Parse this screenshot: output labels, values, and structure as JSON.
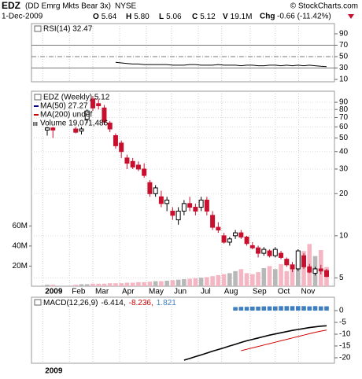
{
  "header": {
    "symbol": "EDZ",
    "name": "(DD Emrg Mkts Bear 3x)",
    "exchange": "NYSE",
    "copyright": "© StockCharts.com",
    "date": "1-Dec-2009",
    "quote": [
      {
        "label": "O",
        "value": "5.64"
      },
      {
        "label": "H",
        "value": "5.80"
      },
      {
        "label": "L",
        "value": "5.06"
      },
      {
        "label": "C",
        "value": "5.12"
      },
      {
        "label": "V",
        "value": "19.1M"
      }
    ],
    "change_label": "Chg",
    "change": "-0.66 (-11.42%)"
  },
  "chart_data": [
    {
      "type": "line",
      "title": "RSI(14) 32.47",
      "color": "#000000",
      "x": [
        12,
        13,
        14,
        15,
        16,
        17,
        18,
        19,
        20,
        21,
        22,
        23,
        24,
        25,
        26,
        27,
        28,
        29,
        30,
        31,
        32,
        33,
        34,
        35,
        36,
        37,
        38,
        39,
        40,
        41,
        42,
        43,
        44,
        45,
        46,
        47,
        48,
        49
      ],
      "values": [
        40,
        39,
        38,
        37,
        37,
        36,
        36,
        36,
        36,
        36,
        35,
        35,
        35,
        36,
        36,
        35,
        35,
        35,
        36,
        35,
        35,
        35,
        34,
        35,
        35,
        34,
        34,
        35,
        35,
        34,
        35,
        34,
        35,
        34,
        35,
        34,
        33,
        32.47
      ],
      "xlim": [
        -2.76,
        50.38
      ],
      "ylim": [
        5.86,
        107.9
      ],
      "yticks": [
        90,
        70,
        50,
        30,
        10
      ],
      "lines": [
        70,
        50,
        30
      ]
    },
    {
      "type": "candlestick",
      "title": "EDZ (Weekly) 5.12",
      "log_scale": true,
      "grid": true,
      "x": [
        0,
        1,
        5,
        6,
        7,
        8,
        9,
        10,
        11,
        12,
        13,
        14,
        15,
        16,
        17,
        18,
        19,
        20,
        21,
        22,
        23,
        24,
        25,
        26,
        27,
        28,
        29,
        30,
        31,
        32,
        33,
        34,
        35,
        36,
        37,
        38,
        39,
        40,
        41,
        42,
        43,
        44,
        45,
        46,
        47,
        48,
        49
      ],
      "open": [
        57,
        59,
        58,
        56,
        68,
        95,
        88,
        82,
        64,
        52,
        46,
        36,
        34,
        32,
        30,
        24,
        20,
        19,
        17,
        15,
        13,
        15,
        17,
        16,
        16,
        18,
        14,
        11.5,
        10,
        9,
        10,
        10.5,
        9.8,
        8.5,
        8.2,
        7.5,
        7.8,
        7.2,
        7.5,
        6.8,
        6.2,
        5.8,
        7.2,
        6,
        5.4,
        5.8,
        5.64
      ],
      "high": [
        60,
        60,
        60,
        60,
        80,
        100,
        95,
        86,
        66,
        54,
        48,
        38,
        36,
        34,
        33,
        25,
        23,
        21,
        19,
        16,
        16,
        18,
        19,
        17,
        19,
        19,
        15,
        12.5,
        10.5,
        9.8,
        11,
        11,
        10,
        9,
        8.5,
        8.3,
        8,
        8.3,
        7.8,
        7,
        6.5,
        8,
        7.5,
        6.3,
        6,
        6.2,
        5.8
      ],
      "low": [
        52,
        50,
        54,
        53,
        64,
        78,
        80,
        62,
        55,
        42,
        36,
        30,
        30,
        29,
        26,
        19,
        19,
        16,
        15,
        13,
        12,
        14,
        15,
        14,
        15,
        14,
        11,
        10.5,
        8.8,
        8.5,
        9.5,
        9.5,
        8.5,
        8,
        7,
        7.2,
        7,
        7,
        6.8,
        6,
        5.5,
        5.6,
        5.8,
        5.4,
        5.2,
        5.3,
        5.06
      ],
      "close": [
        59,
        57,
        55,
        58,
        78,
        82,
        85,
        65,
        58,
        44,
        40,
        33,
        31,
        30,
        27,
        20,
        22,
        17,
        18,
        14,
        15,
        17,
        16,
        15,
        18,
        15,
        11.5,
        11,
        9,
        9.5,
        10.5,
        9.8,
        8.8,
        8.2,
        7.5,
        8,
        7.2,
        8,
        7,
        6.2,
        5.8,
        7.8,
        6,
        5.5,
        5.8,
        5.6,
        5.12
      ],
      "up_color": "#000000",
      "down_color": "#c8102e",
      "xlim": [
        -2.76,
        50.38
      ],
      "ylim": [
        4.36,
        108
      ],
      "yticks": [
        90,
        80,
        70,
        60,
        50,
        40,
        30,
        20,
        10,
        5
      ],
      "xticks": [
        {
          "value": -0.8,
          "label": "2009"
        },
        {
          "value": 3.9,
          "label": "Feb"
        },
        {
          "value": 8,
          "label": "Mar"
        },
        {
          "value": 12.7,
          "label": "Apr"
        },
        {
          "value": 17.4,
          "label": "May"
        },
        {
          "value": 21.8,
          "label": "Jun"
        },
        {
          "value": 26.5,
          "label": "Jul"
        },
        {
          "value": 30.6,
          "label": "Aug"
        },
        {
          "value": 35.6,
          "label": "Sep"
        },
        {
          "value": 40,
          "label": "Oct"
        },
        {
          "value": 44.1,
          "label": "Nov"
        }
      ],
      "legend": [
        {
          "name": "MA(50) 27.27",
          "color": "#00008b"
        },
        {
          "name": "MA(200) undef",
          "color": "#d00000"
        }
      ],
      "volume": {
        "name": "Volume 19,071,486",
        "up_color": "#b8b8b8",
        "down_color": "#f4b6c2",
        "values": [
          1.5,
          1.5,
          1.5,
          2,
          2,
          2.5,
          2.5,
          2.5,
          3,
          3,
          3,
          3.5,
          3.5,
          4,
          4,
          4.5,
          5,
          5,
          5.5,
          6,
          6.5,
          7,
          7.5,
          8,
          8.5,
          9,
          10,
          11,
          12,
          13,
          15,
          17,
          13,
          12,
          14,
          18,
          20,
          17,
          22,
          15,
          18,
          22,
          35,
          42,
          30,
          36,
          19.071486
        ],
        "ylim": [
          0,
          194
        ],
        "yticks": [
          {
            "value": 60,
            "label": "60M"
          },
          {
            "value": 40,
            "label": "40M"
          },
          {
            "value": 20,
            "label": "20M"
          }
        ]
      }
    },
    {
      "type": "macd",
      "title": "MACD(12,26,9)",
      "xlim": [
        -2.76,
        50.38
      ],
      "ylim": [
        -22.33,
        5.67
      ],
      "yticks": [
        0,
        -5,
        -10,
        -15,
        -20
      ],
      "series": [
        {
          "name": "-6.414,",
          "color": "#000000",
          "style": "line",
          "x": [
            24,
            25,
            26,
            27,
            28,
            29,
            30,
            31,
            32,
            33,
            34,
            35,
            36,
            37,
            38,
            39,
            40,
            41,
            42,
            43,
            44,
            45,
            46,
            47,
            48,
            49
          ],
          "values": [
            -21,
            -20.3,
            -19.5,
            -18.8,
            -18,
            -17.2,
            -16.5,
            -15.8,
            -15,
            -14.3,
            -13.5,
            -12.8,
            -12.2,
            -11.6,
            -11,
            -10.4,
            -9.9,
            -9.4,
            -8.9,
            -8.4,
            -8,
            -7.6,
            -7.2,
            -6.9,
            -6.6,
            -6.414
          ]
        },
        {
          "name": "-8.236,",
          "color": "#d00000",
          "style": "line",
          "x": [
            34,
            35,
            36,
            37,
            38,
            39,
            40,
            41,
            42,
            43,
            44,
            45,
            46,
            47,
            48,
            49
          ],
          "values": [
            -17,
            -16.4,
            -15.8,
            -15.2,
            -14.6,
            -14,
            -13.4,
            -12.8,
            -12.2,
            -11.6,
            -11,
            -10.4,
            -9.8,
            -9.2,
            -8.7,
            -8.236
          ]
        },
        {
          "name": "1.821",
          "color": "#3f7fbf",
          "style": "histogram",
          "x": [
            33,
            34,
            35,
            36,
            37,
            38,
            39,
            40,
            41,
            42,
            43,
            44,
            45,
            46,
            47,
            48,
            49
          ],
          "values": [
            1.5,
            1.6,
            1.6,
            1.7,
            1.7,
            1.8,
            1.8,
            1.8,
            1.9,
            1.9,
            1.9,
            1.9,
            1.9,
            1.8,
            1.9,
            1.8,
            1.821
          ]
        }
      ]
    }
  ]
}
